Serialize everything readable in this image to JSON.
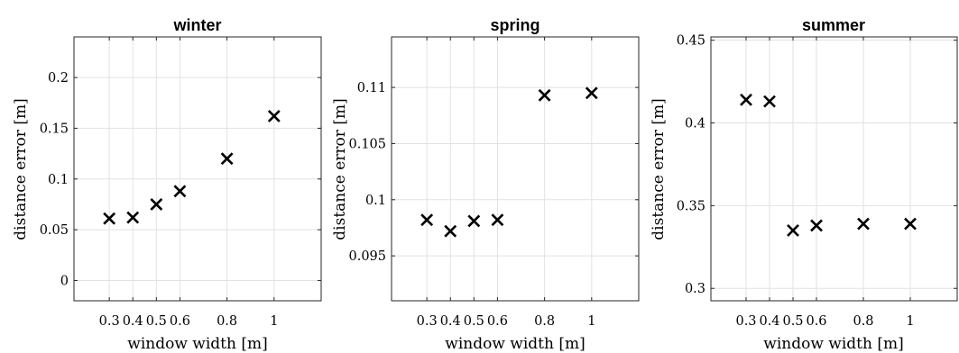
{
  "chart_data": [
    {
      "type": "scatter",
      "title": "winter",
      "xlabel": "window width [m]",
      "ylabel": "distance error [m]",
      "xlim": [
        0.15,
        1.2
      ],
      "ylim": [
        -0.02,
        0.24
      ],
      "xticks": [
        0.3,
        0.4,
        0.5,
        0.6,
        0.8,
        1
      ],
      "xticklabels": [
        "0.3",
        "0.4",
        "0.5",
        "0.6",
        "0.8",
        "1"
      ],
      "yticks": [
        0,
        0.05,
        0.1,
        0.15,
        0.2
      ],
      "yticklabels": [
        "0",
        "0.05",
        "0.1",
        "0.15",
        "0.2"
      ],
      "grid": true,
      "marker": "x",
      "x": [
        0.3,
        0.4,
        0.5,
        0.6,
        0.8,
        1
      ],
      "y": [
        0.061,
        0.062,
        0.075,
        0.088,
        0.12,
        0.162
      ]
    },
    {
      "type": "scatter",
      "title": "spring",
      "xlabel": "window width [m]",
      "ylabel": "distance error [m]",
      "xlim": [
        0.15,
        1.2
      ],
      "ylim": [
        0.091,
        0.1145
      ],
      "xticks": [
        0.3,
        0.4,
        0.5,
        0.6,
        0.8,
        1
      ],
      "xticklabels": [
        "0.3",
        "0.4",
        "0.5",
        "0.6",
        "0.8",
        "1"
      ],
      "yticks": [
        0.095,
        0.1,
        0.105,
        0.11
      ],
      "yticklabels": [
        "0.095",
        "0.1",
        "0.105",
        "0.11"
      ],
      "grid": true,
      "marker": "x",
      "x": [
        0.3,
        0.4,
        0.5,
        0.6,
        0.8,
        1
      ],
      "y": [
        0.0982,
        0.0972,
        0.0981,
        0.0982,
        0.1093,
        0.1095
      ]
    },
    {
      "type": "scatter",
      "title": "summer",
      "xlabel": "window width [m]",
      "ylabel": "distance error [m]",
      "xlim": [
        0.15,
        1.2
      ],
      "ylim": [
        0.2925,
        0.452
      ],
      "xticks": [
        0.3,
        0.4,
        0.5,
        0.6,
        0.8,
        1
      ],
      "xticklabels": [
        "0.3",
        "0.4",
        "0.5",
        "0.6",
        "0.8",
        "1"
      ],
      "yticks": [
        0.3,
        0.35,
        0.4,
        0.45
      ],
      "yticklabels": [
        "0.3",
        "0.35",
        "0.4",
        "0.45"
      ],
      "grid": true,
      "marker": "x",
      "x": [
        0.3,
        0.4,
        0.5,
        0.6,
        0.8,
        1
      ],
      "y": [
        0.414,
        0.413,
        0.335,
        0.338,
        0.339,
        0.339
      ]
    }
  ]
}
